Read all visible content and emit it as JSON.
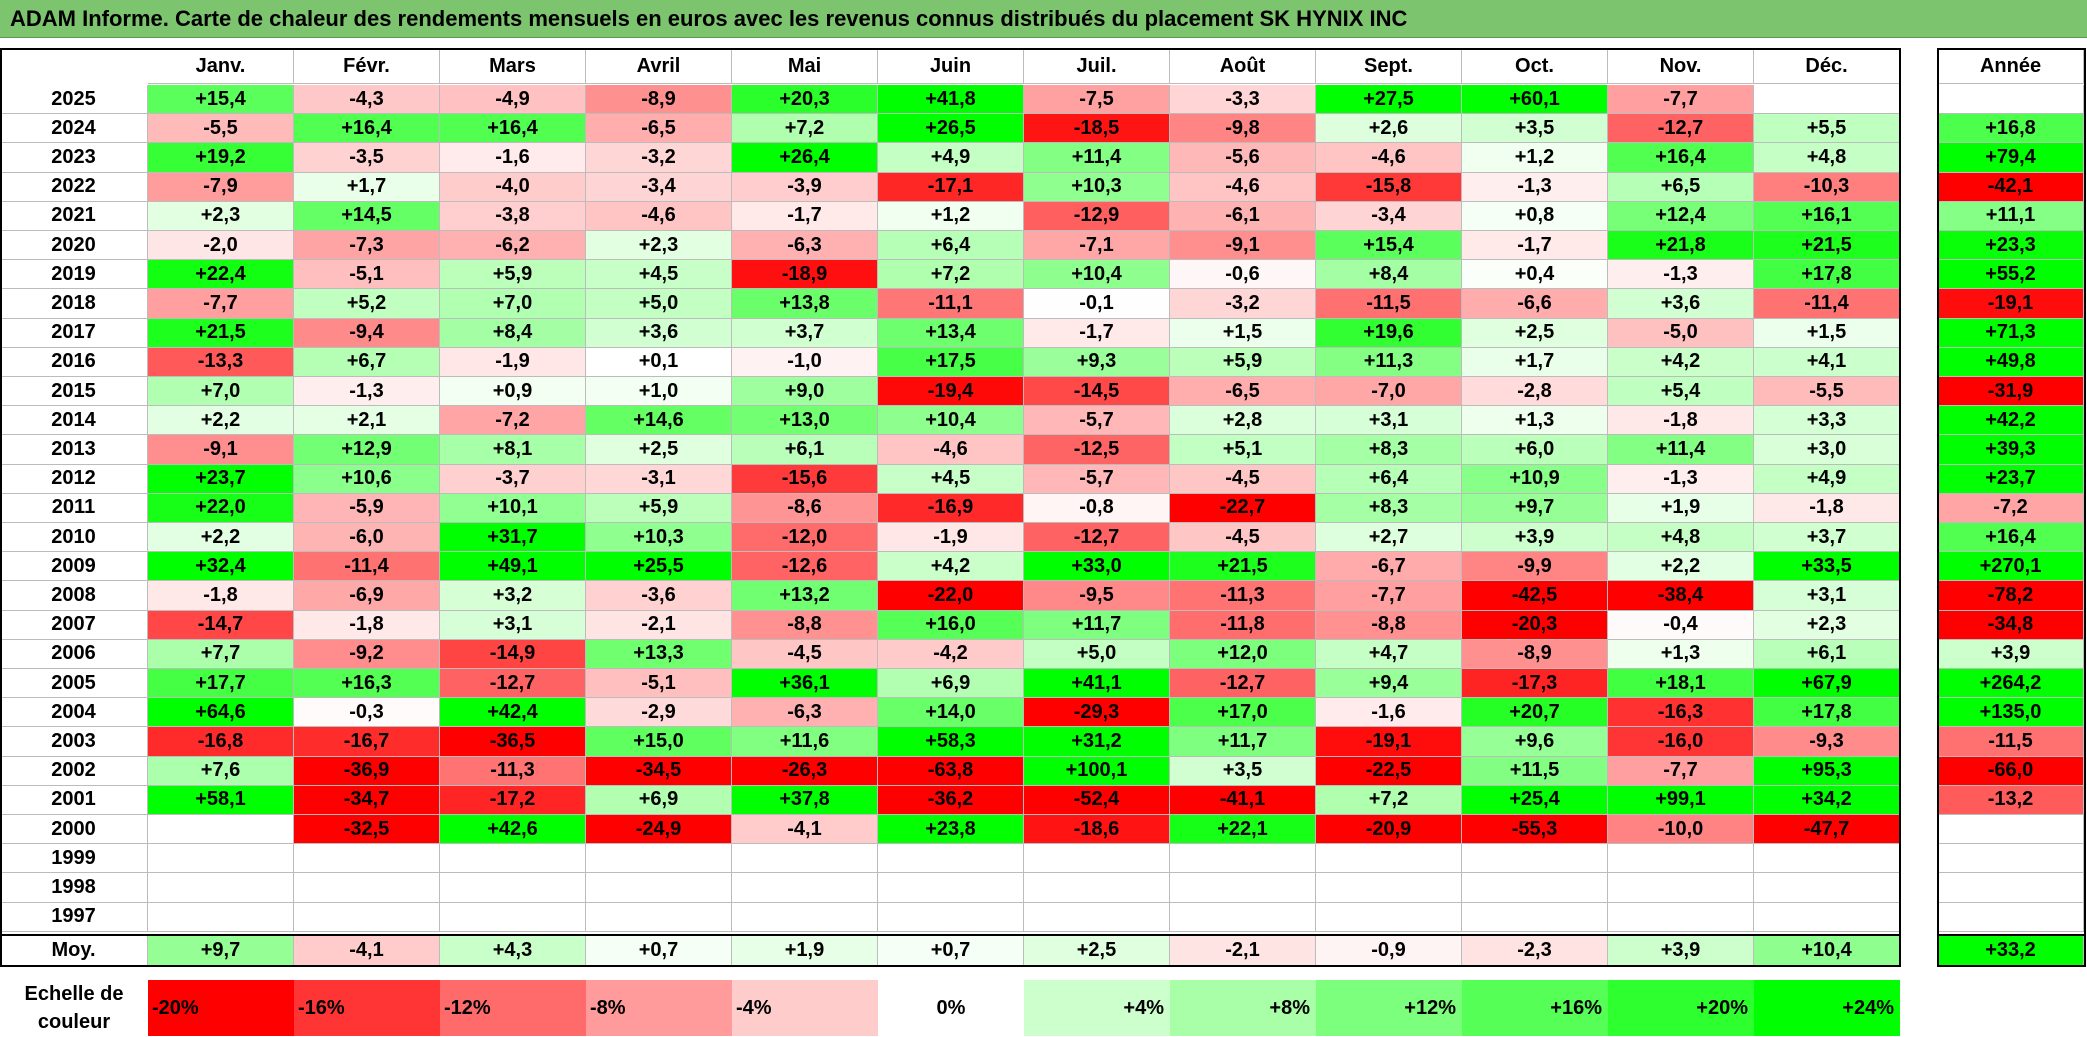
{
  "title": "ADAM Informe. Carte de chaleur des rendements mensuels en euros avec les revenus connus distribués du placement SK HYNIX INC",
  "chart_data": {
    "type": "heatmap",
    "months": [
      "Janv.",
      "Févr.",
      "Mars",
      "Avril",
      "Mai",
      "Juin",
      "Juil.",
      "Août",
      "Sept.",
      "Oct.",
      "Nov.",
      "Déc."
    ],
    "year_header": "Année",
    "rows": [
      {
        "year": "2025",
        "months": [
          "+15,4",
          "-4,3",
          "-4,9",
          "-8,9",
          "+20,3",
          "+41,8",
          "-7,5",
          "-3,3",
          "+27,5",
          "+60,1",
          "-7,7",
          ""
        ],
        "annual": ""
      },
      {
        "year": "2024",
        "months": [
          "-5,5",
          "+16,4",
          "+16,4",
          "-6,5",
          "+7,2",
          "+26,5",
          "-18,5",
          "-9,8",
          "+2,6",
          "+3,5",
          "-12,7",
          "+5,5"
        ],
        "annual": "+16,8"
      },
      {
        "year": "2023",
        "months": [
          "+19,2",
          "-3,5",
          "-1,6",
          "-3,2",
          "+26,4",
          "+4,9",
          "+11,4",
          "-5,6",
          "-4,6",
          "+1,2",
          "+16,4",
          "+4,8"
        ],
        "annual": "+79,4"
      },
      {
        "year": "2022",
        "months": [
          "-7,9",
          "+1,7",
          "-4,0",
          "-3,4",
          "-3,9",
          "-17,1",
          "+10,3",
          "-4,6",
          "-15,8",
          "-1,3",
          "+6,5",
          "-10,3"
        ],
        "annual": "-42,1"
      },
      {
        "year": "2021",
        "months": [
          "+2,3",
          "+14,5",
          "-3,8",
          "-4,6",
          "-1,7",
          "+1,2",
          "-12,9",
          "-6,1",
          "-3,4",
          "+0,8",
          "+12,4",
          "+16,1"
        ],
        "annual": "+11,1"
      },
      {
        "year": "2020",
        "months": [
          "-2,0",
          "-7,3",
          "-6,2",
          "+2,3",
          "-6,3",
          "+6,4",
          "-7,1",
          "-9,1",
          "+15,4",
          "-1,7",
          "+21,8",
          "+21,5"
        ],
        "annual": "+23,3"
      },
      {
        "year": "2019",
        "months": [
          "+22,4",
          "-5,1",
          "+5,9",
          "+4,5",
          "-18,9",
          "+7,2",
          "+10,4",
          "-0,6",
          "+8,4",
          "+0,4",
          "-1,3",
          "+17,8"
        ],
        "annual": "+55,2"
      },
      {
        "year": "2018",
        "months": [
          "-7,7",
          "+5,2",
          "+7,0",
          "+5,0",
          "+13,8",
          "-11,1",
          "-0,1",
          "-3,2",
          "-11,5",
          "-6,6",
          "+3,6",
          "-11,4"
        ],
        "annual": "-19,1"
      },
      {
        "year": "2017",
        "months": [
          "+21,5",
          "-9,4",
          "+8,4",
          "+3,6",
          "+3,7",
          "+13,4",
          "-1,7",
          "+1,5",
          "+19,6",
          "+2,5",
          "-5,0",
          "+1,5"
        ],
        "annual": "+71,3"
      },
      {
        "year": "2016",
        "months": [
          "-13,3",
          "+6,7",
          "-1,9",
          "+0,1",
          "-1,0",
          "+17,5",
          "+9,3",
          "+5,9",
          "+11,3",
          "+1,7",
          "+4,2",
          "+4,1"
        ],
        "annual": "+49,8"
      },
      {
        "year": "2015",
        "months": [
          "+7,0",
          "-1,3",
          "+0,9",
          "+1,0",
          "+9,0",
          "-19,4",
          "-14,5",
          "-6,5",
          "-7,0",
          "-2,8",
          "+5,4",
          "-5,5"
        ],
        "annual": "-31,9"
      },
      {
        "year": "2014",
        "months": [
          "+2,2",
          "+2,1",
          "-7,2",
          "+14,6",
          "+13,0",
          "+10,4",
          "-5,7",
          "+2,8",
          "+3,1",
          "+1,3",
          "-1,8",
          "+3,3"
        ],
        "annual": "+42,2"
      },
      {
        "year": "2013",
        "months": [
          "-9,1",
          "+12,9",
          "+8,1",
          "+2,5",
          "+6,1",
          "-4,6",
          "-12,5",
          "+5,1",
          "+8,3",
          "+6,0",
          "+11,4",
          "+3,0"
        ],
        "annual": "+39,3"
      },
      {
        "year": "2012",
        "months": [
          "+23,7",
          "+10,6",
          "-3,7",
          "-3,1",
          "-15,6",
          "+4,5",
          "-5,7",
          "-4,5",
          "+6,4",
          "+10,9",
          "-1,3",
          "+4,9"
        ],
        "annual": "+23,7"
      },
      {
        "year": "2011",
        "months": [
          "+22,0",
          "-5,9",
          "+10,1",
          "+5,9",
          "-8,6",
          "-16,9",
          "-0,8",
          "-22,7",
          "+8,3",
          "+9,7",
          "+1,9",
          "-1,8"
        ],
        "annual": "-7,2"
      },
      {
        "year": "2010",
        "months": [
          "+2,2",
          "-6,0",
          "+31,7",
          "+10,3",
          "-12,0",
          "-1,9",
          "-12,7",
          "-4,5",
          "+2,7",
          "+3,9",
          "+4,8",
          "+3,7"
        ],
        "annual": "+16,4"
      },
      {
        "year": "2009",
        "months": [
          "+32,4",
          "-11,4",
          "+49,1",
          "+25,5",
          "-12,6",
          "+4,2",
          "+33,0",
          "+21,5",
          "-6,7",
          "-9,9",
          "+2,2",
          "+33,5"
        ],
        "annual": "+270,1"
      },
      {
        "year": "2008",
        "months": [
          "-1,8",
          "-6,9",
          "+3,2",
          "-3,6",
          "+13,2",
          "-22,0",
          "-9,5",
          "-11,3",
          "-7,7",
          "-42,5",
          "-38,4",
          "+3,1"
        ],
        "annual": "-78,2"
      },
      {
        "year": "2007",
        "months": [
          "-14,7",
          "-1,8",
          "+3,1",
          "-2,1",
          "-8,8",
          "+16,0",
          "+11,7",
          "-11,8",
          "-8,8",
          "-20,3",
          "-0,4",
          "+2,3"
        ],
        "annual": "-34,8"
      },
      {
        "year": "2006",
        "months": [
          "+7,7",
          "-9,2",
          "-14,9",
          "+13,3",
          "-4,5",
          "-4,2",
          "+5,0",
          "+12,0",
          "+4,7",
          "-8,9",
          "+1,3",
          "+6,1"
        ],
        "annual": "+3,9"
      },
      {
        "year": "2005",
        "months": [
          "+17,7",
          "+16,3",
          "-12,7",
          "-5,1",
          "+36,1",
          "+6,9",
          "+41,1",
          "-12,7",
          "+9,4",
          "-17,3",
          "+18,1",
          "+67,9"
        ],
        "annual": "+264,2"
      },
      {
        "year": "2004",
        "months": [
          "+64,6",
          "-0,3",
          "+42,4",
          "-2,9",
          "-6,3",
          "+14,0",
          "-29,3",
          "+17,0",
          "-1,6",
          "+20,7",
          "-16,3",
          "+17,8"
        ],
        "annual": "+135,0"
      },
      {
        "year": "2003",
        "months": [
          "-16,8",
          "-16,7",
          "-36,5",
          "+15,0",
          "+11,6",
          "+58,3",
          "+31,2",
          "+11,7",
          "-19,1",
          "+9,6",
          "-16,0",
          "-9,3"
        ],
        "annual": "-11,5"
      },
      {
        "year": "2002",
        "months": [
          "+7,6",
          "-36,9",
          "-11,3",
          "-34,5",
          "-26,3",
          "-63,8",
          "+100,1",
          "+3,5",
          "-22,5",
          "+11,5",
          "-7,7",
          "+95,3"
        ],
        "annual": "-66,0"
      },
      {
        "year": "2001",
        "months": [
          "+58,1",
          "-34,7",
          "-17,2",
          "+6,9",
          "+37,8",
          "-36,2",
          "-52,4",
          "-41,1",
          "+7,2",
          "+25,4",
          "+99,1",
          "+34,2"
        ],
        "annual": "-13,2"
      },
      {
        "year": "2000",
        "months": [
          "",
          "-32,5",
          "+42,6",
          "-24,9",
          "-4,1",
          "+23,8",
          "-18,6",
          "+22,1",
          "-20,9",
          "-55,3",
          "-10,0",
          "-47,7"
        ],
        "annual": ""
      },
      {
        "year": "1999",
        "months": [
          "",
          "",
          "",
          "",
          "",
          "",
          "",
          "",
          "",
          "",
          "",
          ""
        ],
        "annual": ""
      },
      {
        "year": "1998",
        "months": [
          "",
          "",
          "",
          "",
          "",
          "",
          "",
          "",
          "",
          "",
          "",
          ""
        ],
        "annual": ""
      },
      {
        "year": "1997",
        "months": [
          "",
          "",
          "",
          "",
          "",
          "",
          "",
          "",
          "",
          "",
          "",
          ""
        ],
        "annual": ""
      }
    ],
    "average": {
      "label": "Moy.",
      "months": [
        "+9,7",
        "-4,1",
        "+4,3",
        "+0,7",
        "+1,9",
        "+0,7",
        "+2,5",
        "-2,1",
        "-0,9",
        "-2,3",
        "+3,9",
        "+10,4"
      ],
      "annual": "+33,2"
    },
    "color_scale": {
      "label_line1": "Echelle de",
      "label_line2": "couleur",
      "stops": [
        "-20%",
        "-16%",
        "-12%",
        "-8%",
        "-4%",
        "0%",
        "+4%",
        "+8%",
        "+12%",
        "+16%",
        "+20%",
        "+24%"
      ],
      "stop_values": [
        -20,
        -16,
        -12,
        -8,
        -4,
        0,
        4,
        8,
        12,
        16,
        20,
        24
      ],
      "colors": [
        "#ff0000",
        "#ff3535",
        "#ff6b6b",
        "#ff9b9b",
        "#ffcccc",
        "#ffffff",
        "#ccffcc",
        "#a8ffa8",
        "#7cff7c",
        "#55ff55",
        "#2eff2e",
        "#00ff00"
      ]
    }
  }
}
